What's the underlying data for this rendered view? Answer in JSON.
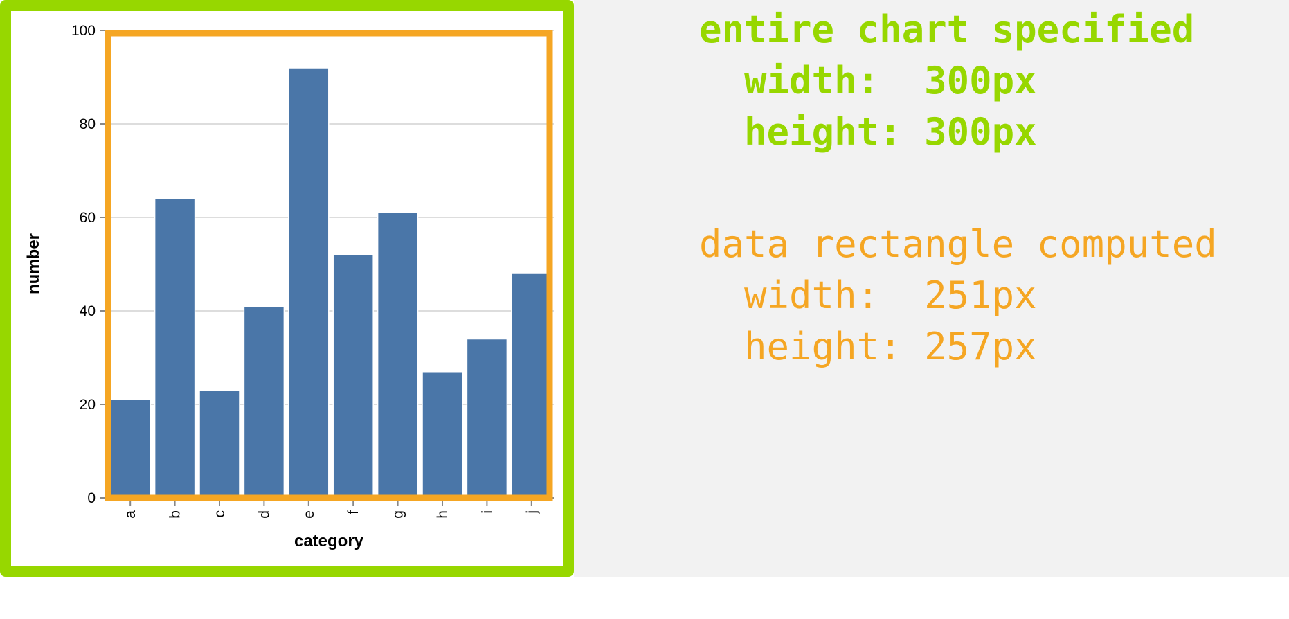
{
  "colors": {
    "outer_frame": "#97d700",
    "data_rect": "#f5a623",
    "bar": "#4a76a8",
    "gridline": "#dddddd",
    "panel": "#f2f2f2"
  },
  "annotations": {
    "specified": {
      "title": "entire chart specified",
      "width_line": "  width:  300px",
      "height_line": "  height: 300px"
    },
    "computed": {
      "title": "data rectangle computed",
      "width_line": "  width:  251px",
      "height_line": "  height: 257px"
    }
  },
  "chart_data": {
    "type": "bar",
    "categories": [
      "a",
      "b",
      "c",
      "d",
      "e",
      "f",
      "g",
      "h",
      "i",
      "j"
    ],
    "values": [
      21,
      64,
      23,
      41,
      92,
      52,
      61,
      27,
      34,
      48
    ],
    "xlabel": "category",
    "ylabel": "number",
    "ylim": [
      0,
      100
    ],
    "yticks": [
      0,
      20,
      40,
      60,
      80,
      100
    ],
    "grid": true,
    "legend": "none"
  }
}
